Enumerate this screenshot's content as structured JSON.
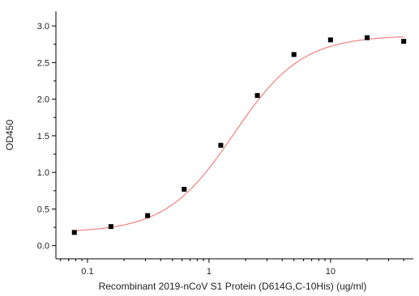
{
  "chart_data": {
    "type": "scatter",
    "title": "",
    "xlabel": "Recombinant 2019-nCoV S1 Protein (D614G,C-10His) (ug/ml)",
    "ylabel": "OD450",
    "x_scale": "log",
    "xlim": [
      0.055,
      48
    ],
    "ylim": [
      -0.18,
      3.2
    ],
    "x_ticks": [
      0.1,
      1,
      10
    ],
    "x_tick_labels": [
      "0.1",
      "1",
      "10"
    ],
    "y_ticks": [
      0.0,
      0.5,
      1.0,
      1.5,
      2.0,
      2.5,
      3.0
    ],
    "y_tick_labels": [
      "0.0",
      "0.5",
      "1.0",
      "1.5",
      "2.0",
      "2.5",
      "3.0"
    ],
    "grid": false,
    "legend": "none",
    "points": {
      "x": [
        0.078,
        0.156,
        0.3125,
        0.625,
        1.25,
        2.5,
        5,
        10,
        20,
        40
      ],
      "y": [
        0.18,
        0.26,
        0.41,
        0.77,
        1.37,
        2.05,
        2.61,
        2.81,
        2.84,
        2.79
      ],
      "color": "#000000"
    },
    "fit_curve": {
      "model": "4PL",
      "bottom": 0.18,
      "top": 2.87,
      "ec50": 1.6,
      "hill": 1.55,
      "color": "#f08080"
    }
  }
}
